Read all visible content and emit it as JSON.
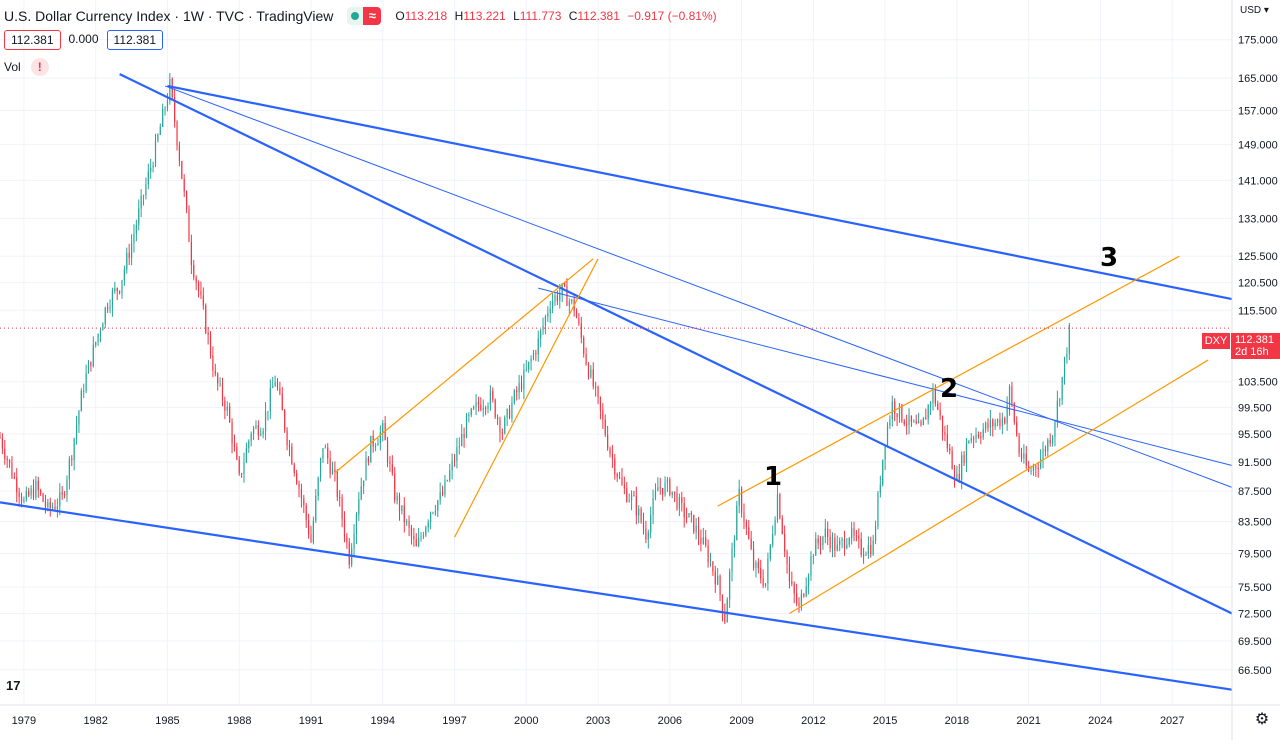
{
  "header": {
    "title": "U.S. Dollar Currency Index · 1W · TVC · TradingView",
    "status_dot_icon": "market-status-dot-icon",
    "wave_icon_glyph": "≈",
    "ohlc": {
      "o_label": "O",
      "o_value": "113.218",
      "h_label": "H",
      "h_value": "113.221",
      "l_label": "L",
      "l_value": "111.773",
      "c_label": "C",
      "c_value": "112.381",
      "change": "−0.917 (−0.81%)"
    }
  },
  "price_row": {
    "sell": "112.381",
    "spread": "0.000",
    "buy": "112.381"
  },
  "volume": {
    "label": "Vol",
    "warning_glyph": "!"
  },
  "currency_menu": "USD ▾",
  "symbol_badge": "DXY",
  "last_price": {
    "value": "112.381",
    "countdown": "2d 16h"
  },
  "logo_text": "17",
  "settings_glyph": "⚙",
  "wave_labels": {
    "one": "1",
    "two": "2",
    "three": "3"
  },
  "colors": {
    "up": "#26a69a",
    "down": "#f23645",
    "trend": "#2962ff",
    "channel": "#ff9800",
    "grid": "#f0f3fa"
  },
  "chart_data": {
    "type": "candlestick",
    "title": "U.S. Dollar Currency Index",
    "timeframe": "1W",
    "y_ticks": [
      "175.000",
      "165.000",
      "157.000",
      "149.000",
      "141.000",
      "133.000",
      "125.500",
      "120.500",
      "115.500",
      "103.500",
      "99.500",
      "95.500",
      "91.500",
      "87.500",
      "83.500",
      "79.500",
      "75.500",
      "72.500",
      "69.500",
      "66.500"
    ],
    "x_ticks": [
      "1979",
      "1982",
      "1985",
      "1988",
      "1991",
      "1994",
      "1997",
      "2000",
      "2003",
      "2006",
      "2009",
      "2012",
      "2015",
      "2018",
      "2021",
      "2024",
      "2027"
    ],
    "x_range": [
      1978.0,
      2029.5
    ],
    "y_range_log": [
      63.0,
      186.0
    ],
    "price_path": [
      [
        1978.0,
        95.0
      ],
      [
        1978.5,
        90.0
      ],
      [
        1979.0,
        86.0
      ],
      [
        1979.5,
        88.0
      ],
      [
        1980.0,
        85.0
      ],
      [
        1980.6,
        86.5
      ],
      [
        1981.0,
        93.0
      ],
      [
        1981.5,
        103.0
      ],
      [
        1982.0,
        110.0
      ],
      [
        1982.5,
        117.0
      ],
      [
        1983.0,
        120.0
      ],
      [
        1983.5,
        128.0
      ],
      [
        1984.0,
        138.0
      ],
      [
        1984.5,
        148.0
      ],
      [
        1985.1,
        163.0
      ],
      [
        1985.6,
        142.0
      ],
      [
        1986.0,
        125.0
      ],
      [
        1986.5,
        115.0
      ],
      [
        1987.0,
        104.0
      ],
      [
        1987.5,
        99.0
      ],
      [
        1988.0,
        89.0
      ],
      [
        1988.5,
        96.0
      ],
      [
        1989.0,
        97.0
      ],
      [
        1989.5,
        104.0
      ],
      [
        1990.0,
        95.0
      ],
      [
        1990.5,
        88.0
      ],
      [
        1991.0,
        81.0
      ],
      [
        1991.5,
        94.0
      ],
      [
        1992.0,
        89.0
      ],
      [
        1992.6,
        79.0
      ],
      [
        1993.0,
        87.0
      ],
      [
        1993.5,
        94.0
      ],
      [
        1994.0,
        96.0
      ],
      [
        1994.5,
        87.0
      ],
      [
        1995.0,
        83.0
      ],
      [
        1995.4,
        80.0
      ],
      [
        1996.0,
        85.0
      ],
      [
        1996.5,
        87.0
      ],
      [
        1997.0,
        92.0
      ],
      [
        1997.5,
        97.0
      ],
      [
        1998.0,
        100.0
      ],
      [
        1998.5,
        101.0
      ],
      [
        1999.0,
        96.0
      ],
      [
        1999.5,
        101.0
      ],
      [
        2000.0,
        105.0
      ],
      [
        2000.5,
        110.0
      ],
      [
        2001.0,
        117.0
      ],
      [
        2001.5,
        119.0
      ],
      [
        2002.0,
        116.0
      ],
      [
        2002.5,
        107.0
      ],
      [
        2003.0,
        100.0
      ],
      [
        2003.5,
        93.0
      ],
      [
        2004.0,
        88.0
      ],
      [
        2004.5,
        86.0
      ],
      [
        2005.0,
        82.0
      ],
      [
        2005.5,
        88.0
      ],
      [
        2006.0,
        88.0
      ],
      [
        2006.5,
        85.0
      ],
      [
        2007.0,
        83.0
      ],
      [
        2007.5,
        80.0
      ],
      [
        2008.0,
        76.0
      ],
      [
        2008.3,
        72.0
      ],
      [
        2008.9,
        87.0
      ],
      [
        2009.5,
        78.0
      ],
      [
        2010.0,
        76.0
      ],
      [
        2010.5,
        87.0
      ],
      [
        2011.0,
        76.0
      ],
      [
        2011.4,
        73.0
      ],
      [
        2012.0,
        80.0
      ],
      [
        2012.5,
        82.0
      ],
      [
        2013.0,
        80.0
      ],
      [
        2013.5,
        82.0
      ],
      [
        2014.0,
        80.0
      ],
      [
        2014.5,
        80.5
      ],
      [
        2015.0,
        95.0
      ],
      [
        2015.3,
        100.0
      ],
      [
        2016.0,
        97.0
      ],
      [
        2016.5,
        96.0
      ],
      [
        2017.0,
        102.0
      ],
      [
        2017.5,
        95.0
      ],
      [
        2018.0,
        89.0
      ],
      [
        2018.5,
        95.0
      ],
      [
        2019.0,
        96.0
      ],
      [
        2019.5,
        97.0
      ],
      [
        2020.0,
        98.0
      ],
      [
        2020.2,
        102.0
      ],
      [
        2020.6,
        93.0
      ],
      [
        2021.0,
        90.0
      ],
      [
        2021.5,
        92.0
      ],
      [
        2022.0,
        96.0
      ],
      [
        2022.4,
        104.0
      ],
      [
        2022.75,
        113.0
      ]
    ],
    "trendlines": [
      {
        "name": "upper-descending",
        "color": "blue",
        "from": [
          1985.0,
          163.0
        ],
        "to": [
          2029.5,
          117.5
        ]
      },
      {
        "name": "main-descending",
        "color": "blue",
        "from": [
          1983.0,
          166.0
        ],
        "to": [
          2029.5,
          72.5
        ]
      },
      {
        "name": "lower-support",
        "color": "blue",
        "from": [
          1978.0,
          86.0
        ],
        "to": [
          2029.5,
          64.5
        ]
      },
      {
        "name": "thin-1985-to-2019",
        "color": "blue",
        "from": [
          1984.9,
          163.0
        ],
        "to": [
          2029.5,
          88.0
        ]
      },
      {
        "name": "thin-2001-to-2020",
        "color": "blue",
        "from": [
          2000.5,
          119.5
        ],
        "to": [
          2029.5,
          91.0
        ]
      },
      {
        "name": "channel-upper",
        "color": "orange",
        "from": [
          2008.0,
          85.5
        ],
        "to": [
          2027.3,
          125.5
        ]
      },
      {
        "name": "channel-lower",
        "color": "orange",
        "from": [
          2011.0,
          72.5
        ],
        "to": [
          2028.5,
          107.0
        ]
      },
      {
        "name": "1992-2002-channel",
        "color": "orange",
        "from": [
          1992.0,
          90.0
        ],
        "to": [
          2002.8,
          125.0
        ]
      },
      {
        "name": "steep-1997-2003",
        "color": "orange",
        "from": [
          1997.0,
          81.5
        ],
        "to": [
          2003.0,
          125.0
        ]
      }
    ]
  }
}
